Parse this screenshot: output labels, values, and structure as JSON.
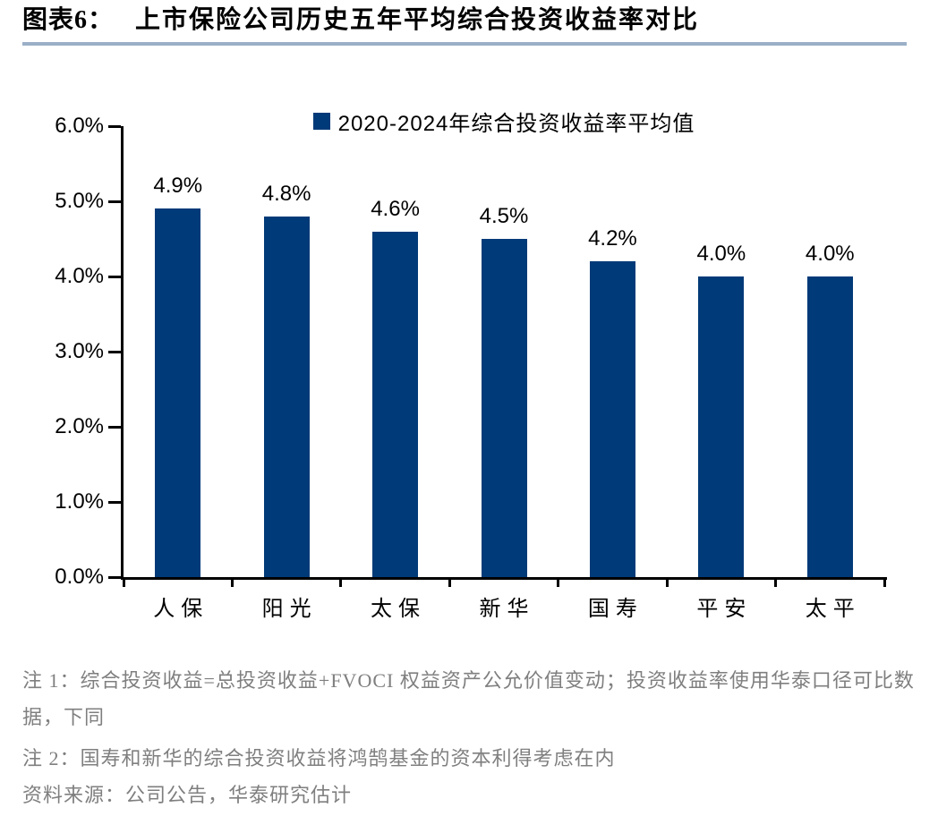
{
  "figure": {
    "label": "图表6：",
    "title": "上市保险公司历史五年平均综合投资收益率对比"
  },
  "chart_data": {
    "type": "bar",
    "legend": "2020-2024年综合投资收益率平均值",
    "legend_position": "top-center",
    "categories": [
      "人保",
      "阳光",
      "太保",
      "新华",
      "国寿",
      "平安",
      "太平"
    ],
    "values": [
      4.9,
      4.8,
      4.6,
      4.5,
      4.2,
      4.0,
      4.0
    ],
    "value_labels": [
      "4.9%",
      "4.8%",
      "4.6%",
      "4.5%",
      "4.2%",
      "4.0%",
      "4.0%"
    ],
    "ylabel": "",
    "xlabel": "",
    "ylim": [
      0,
      6
    ],
    "y_ticks": [
      "6.0%",
      "5.0%",
      "4.0%",
      "3.0%",
      "2.0%",
      "1.0%",
      "0.0%"
    ],
    "grid": false,
    "bar_color": "#003A78"
  },
  "notes": {
    "note1": "注 1：综合投资收益=总投资收益+FVOCI 权益资产公允价值变动；投资收益率使用华泰口径可比数据，下同",
    "note2": "注 2：国寿和新华的综合投资收益将鸿鹄基金的资本利得考虑在内",
    "source": "资料来源：公司公告，华泰研究估计"
  },
  "colors": {
    "bar": "#003A78",
    "title_rule": "#9BAFC7",
    "note_text": "#7F7F7F",
    "axis": "#000000",
    "text": "#000000",
    "background": "#FFFFFF"
  }
}
